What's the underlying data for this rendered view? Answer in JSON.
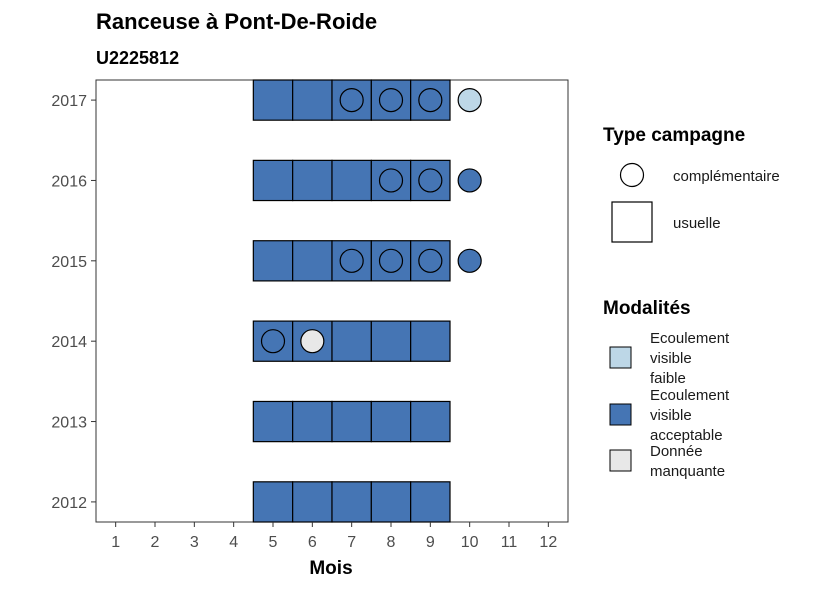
{
  "chart_data": {
    "type": "tile",
    "title": "Ranceuse à Pont-De-Roide",
    "subtitle": "U2225812",
    "xlabel": "Mois",
    "ylabel": "",
    "x_ticks": [
      1,
      2,
      3,
      4,
      5,
      6,
      7,
      8,
      9,
      10,
      11,
      12
    ],
    "y_ticks": [
      2012,
      2013,
      2014,
      2015,
      2016,
      2017
    ],
    "xlim": [
      0.5,
      12.5
    ],
    "ylim": [
      2011.75,
      2017.25
    ],
    "grid": false,
    "legend_position": "right",
    "legends": {
      "type_campagne": {
        "title": "Type campagne",
        "entries": [
          {
            "label": "complémentaire",
            "shape": "circle"
          },
          {
            "label": "usuelle",
            "shape": "square"
          }
        ]
      },
      "modalites": {
        "title": "Modalités",
        "entries": [
          {
            "label_lines": [
              "Ecoulement",
              "visible",
              "faible"
            ],
            "color": "#bdd7e7"
          },
          {
            "label_lines": [
              "Ecoulement",
              "visible",
              "acceptable"
            ],
            "color": "#4575b4"
          },
          {
            "label_lines": [
              "Donnée",
              "manquante"
            ],
            "color": "#e8e8e8"
          }
        ]
      }
    },
    "points": [
      {
        "year": 2012,
        "month": 5,
        "type": "usuelle",
        "modalite": "Ecoulement visible acceptable"
      },
      {
        "year": 2012,
        "month": 6,
        "type": "usuelle",
        "modalite": "Ecoulement visible acceptable"
      },
      {
        "year": 2012,
        "month": 7,
        "type": "usuelle",
        "modalite": "Ecoulement visible acceptable"
      },
      {
        "year": 2012,
        "month": 8,
        "type": "usuelle",
        "modalite": "Ecoulement visible acceptable"
      },
      {
        "year": 2012,
        "month": 9,
        "type": "usuelle",
        "modalite": "Ecoulement visible acceptable"
      },
      {
        "year": 2013,
        "month": 5,
        "type": "usuelle",
        "modalite": "Ecoulement visible acceptable"
      },
      {
        "year": 2013,
        "month": 6,
        "type": "usuelle",
        "modalite": "Ecoulement visible acceptable"
      },
      {
        "year": 2013,
        "month": 7,
        "type": "usuelle",
        "modalite": "Ecoulement visible acceptable"
      },
      {
        "year": 2013,
        "month": 8,
        "type": "usuelle",
        "modalite": "Ecoulement visible acceptable"
      },
      {
        "year": 2013,
        "month": 9,
        "type": "usuelle",
        "modalite": "Ecoulement visible acceptable"
      },
      {
        "year": 2014,
        "month": 5,
        "type": "usuelle",
        "modalite": "Ecoulement visible acceptable"
      },
      {
        "year": 2014,
        "month": 6,
        "type": "usuelle",
        "modalite": "Ecoulement visible acceptable"
      },
      {
        "year": 2014,
        "month": 7,
        "type": "usuelle",
        "modalite": "Ecoulement visible acceptable"
      },
      {
        "year": 2014,
        "month": 8,
        "type": "usuelle",
        "modalite": "Ecoulement visible acceptable"
      },
      {
        "year": 2014,
        "month": 9,
        "type": "usuelle",
        "modalite": "Ecoulement visible acceptable"
      },
      {
        "year": 2014,
        "month": 5,
        "type": "complémentaire",
        "modalite": "Ecoulement visible acceptable"
      },
      {
        "year": 2014,
        "month": 6,
        "type": "complémentaire",
        "modalite": "Donnée manquante"
      },
      {
        "year": 2015,
        "month": 5,
        "type": "usuelle",
        "modalite": "Ecoulement visible acceptable"
      },
      {
        "year": 2015,
        "month": 6,
        "type": "usuelle",
        "modalite": "Ecoulement visible acceptable"
      },
      {
        "year": 2015,
        "month": 7,
        "type": "usuelle",
        "modalite": "Ecoulement visible acceptable"
      },
      {
        "year": 2015,
        "month": 8,
        "type": "usuelle",
        "modalite": "Ecoulement visible acceptable"
      },
      {
        "year": 2015,
        "month": 9,
        "type": "usuelle",
        "modalite": "Ecoulement visible acceptable"
      },
      {
        "year": 2015,
        "month": 7,
        "type": "complémentaire",
        "modalite": "Ecoulement visible acceptable"
      },
      {
        "year": 2015,
        "month": 8,
        "type": "complémentaire",
        "modalite": "Ecoulement visible acceptable"
      },
      {
        "year": 2015,
        "month": 9,
        "type": "complémentaire",
        "modalite": "Ecoulement visible acceptable"
      },
      {
        "year": 2015,
        "month": 10,
        "type": "complémentaire",
        "modalite": "Ecoulement visible acceptable"
      },
      {
        "year": 2016,
        "month": 5,
        "type": "usuelle",
        "modalite": "Ecoulement visible acceptable"
      },
      {
        "year": 2016,
        "month": 6,
        "type": "usuelle",
        "modalite": "Ecoulement visible acceptable"
      },
      {
        "year": 2016,
        "month": 7,
        "type": "usuelle",
        "modalite": "Ecoulement visible acceptable"
      },
      {
        "year": 2016,
        "month": 8,
        "type": "usuelle",
        "modalite": "Ecoulement visible acceptable"
      },
      {
        "year": 2016,
        "month": 9,
        "type": "usuelle",
        "modalite": "Ecoulement visible acceptable"
      },
      {
        "year": 2016,
        "month": 8,
        "type": "complémentaire",
        "modalite": "Ecoulement visible acceptable"
      },
      {
        "year": 2016,
        "month": 9,
        "type": "complémentaire",
        "modalite": "Ecoulement visible acceptable"
      },
      {
        "year": 2016,
        "month": 10,
        "type": "complémentaire",
        "modalite": "Ecoulement visible acceptable"
      },
      {
        "year": 2017,
        "month": 5,
        "type": "usuelle",
        "modalite": "Ecoulement visible acceptable"
      },
      {
        "year": 2017,
        "month": 6,
        "type": "usuelle",
        "modalite": "Ecoulement visible acceptable"
      },
      {
        "year": 2017,
        "month": 7,
        "type": "usuelle",
        "modalite": "Ecoulement visible acceptable"
      },
      {
        "year": 2017,
        "month": 8,
        "type": "usuelle",
        "modalite": "Ecoulement visible acceptable"
      },
      {
        "year": 2017,
        "month": 9,
        "type": "usuelle",
        "modalite": "Ecoulement visible acceptable"
      },
      {
        "year": 2017,
        "month": 7,
        "type": "complémentaire",
        "modalite": "Ecoulement visible acceptable"
      },
      {
        "year": 2017,
        "month": 8,
        "type": "complémentaire",
        "modalite": "Ecoulement visible acceptable"
      },
      {
        "year": 2017,
        "month": 9,
        "type": "complémentaire",
        "modalite": "Ecoulement visible acceptable"
      },
      {
        "year": 2017,
        "month": 10,
        "type": "complémentaire",
        "modalite": "Ecoulement visible faible"
      }
    ]
  }
}
